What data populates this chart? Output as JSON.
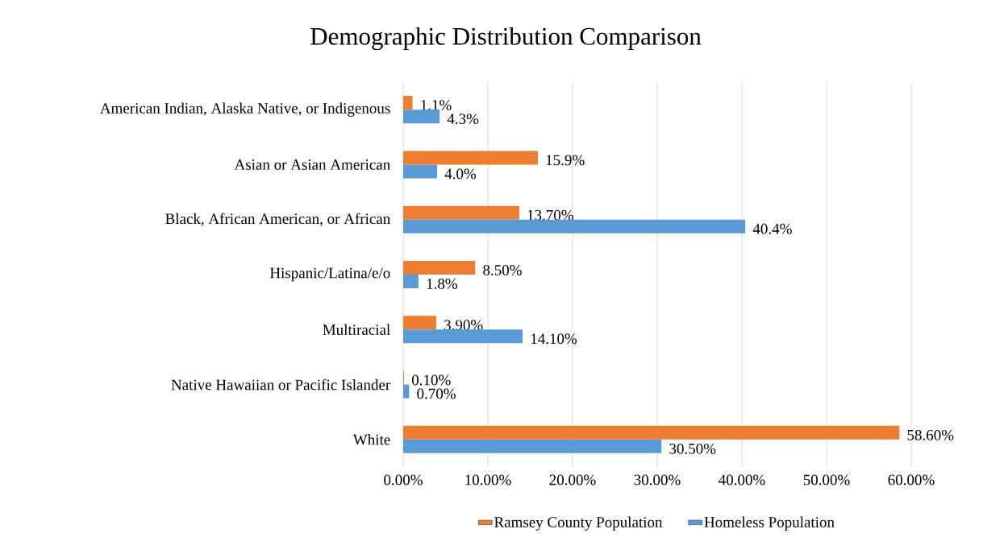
{
  "chart_data": {
    "type": "bar",
    "orientation": "horizontal",
    "title": "Demographic Distribution Comparison",
    "categories": [
      "American Indian, Alaska Native, or Indigenous",
      "Asian or Asian American",
      "Black, African American, or African",
      "Hispanic/Latina/e/o",
      "Multiracial",
      "Native Hawaiian or Pacific Islander",
      "White"
    ],
    "series": [
      {
        "name": "Ramsey County Population",
        "color": "#ed7d31",
        "values": [
          1.1,
          15.9,
          13.7,
          8.5,
          3.9,
          0.1,
          58.6
        ],
        "value_labels": [
          "1.1%",
          "15.9%",
          "13.70%",
          "8.50%",
          "3.90%",
          "0.10%",
          "58.60%"
        ]
      },
      {
        "name": "Homeless Population",
        "color": "#5b9bd5",
        "values": [
          4.3,
          4.0,
          40.4,
          1.8,
          14.1,
          0.7,
          30.5
        ],
        "value_labels": [
          "4.3%",
          "4.0%",
          "40.4%",
          "1.8%",
          "14.10%",
          "0.70%",
          "30.50%"
        ]
      }
    ],
    "xlim": [
      0,
      60
    ],
    "xticks": [
      {
        "value": 0,
        "label": "0.00%"
      },
      {
        "value": 10,
        "label": "10.00%"
      },
      {
        "value": 20,
        "label": "20.00%"
      },
      {
        "value": 30,
        "label": "30.00%"
      },
      {
        "value": 40,
        "label": "40.00%"
      },
      {
        "value": 50,
        "label": "50.00%"
      },
      {
        "value": 60,
        "label": "60.00%"
      }
    ],
    "grid": "x",
    "legend": "bottom"
  }
}
